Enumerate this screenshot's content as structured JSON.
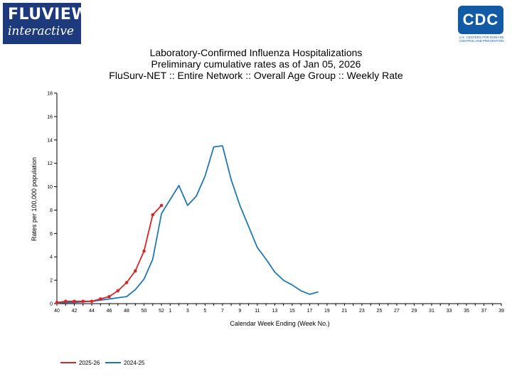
{
  "header": {
    "logo_brand": "FLUVIEW",
    "logo_sub": "interactive",
    "cdc_mark": "CDC",
    "cdc_tagline_1": "U.S. CENTERS FOR DISEASE",
    "cdc_tagline_2": "CONTROL AND PREVENTION"
  },
  "colors": {
    "series_2025_26": "#d62728",
    "series_2024_25": "#1f77b4"
  },
  "chart_data": {
    "type": "line",
    "title_lines": [
      "Laboratory-Confirmed Influenza Hospitalizations",
      "Preliminary cumulative rates as of Jan 05, 2026",
      "FluSurv-NET :: Entire Network :: Overall Age Group :: Weekly Rate"
    ],
    "xlabel": "Calendar Week Ending (Week No.)",
    "ylabel": "Rates per 100,000 population",
    "ylim": [
      0,
      18
    ],
    "yticks": [
      0,
      2,
      4,
      6,
      8,
      10,
      12,
      14,
      16,
      18
    ],
    "x_weeks": [
      40,
      41,
      42,
      43,
      44,
      45,
      46,
      47,
      48,
      49,
      50,
      51,
      52,
      1,
      2,
      3,
      4,
      5,
      6,
      7,
      8,
      9,
      10,
      11,
      12,
      13,
      14,
      15,
      16,
      17,
      18,
      19,
      20,
      21,
      22,
      23,
      24,
      25,
      26,
      27,
      28,
      29,
      30,
      31,
      32,
      33,
      34,
      35,
      36,
      37,
      38,
      39
    ],
    "x_tick_labels": [
      "40",
      "42",
      "44",
      "46",
      "48",
      "50",
      "52",
      "1",
      "3",
      "5",
      "7",
      "9",
      "11",
      "13",
      "15",
      "17",
      "19",
      "21",
      "23",
      "25",
      "27",
      "29",
      "31",
      "33",
      "35",
      "37",
      "39"
    ],
    "grid": false,
    "legend_position": "bottom-left",
    "series": [
      {
        "name": "2025-26",
        "color": "#d62728",
        "markers": true,
        "values": [
          0.1,
          0.2,
          0.2,
          0.2,
          0.2,
          0.4,
          0.6,
          1.1,
          1.8,
          2.8,
          4.5,
          7.6,
          8.4
        ]
      },
      {
        "name": "2024-25",
        "color": "#1f77b4",
        "markers": false,
        "values": [
          0.05,
          0.1,
          0.1,
          0.15,
          0.2,
          0.3,
          0.4,
          0.5,
          0.6,
          1.2,
          2.1,
          3.8,
          7.7,
          8.9,
          10.1,
          8.4,
          9.2,
          10.9,
          13.4,
          13.5,
          10.6,
          8.4,
          6.6,
          4.8,
          3.8,
          2.7,
          2.0,
          1.6,
          1.1,
          0.8,
          1.0
        ]
      }
    ]
  }
}
